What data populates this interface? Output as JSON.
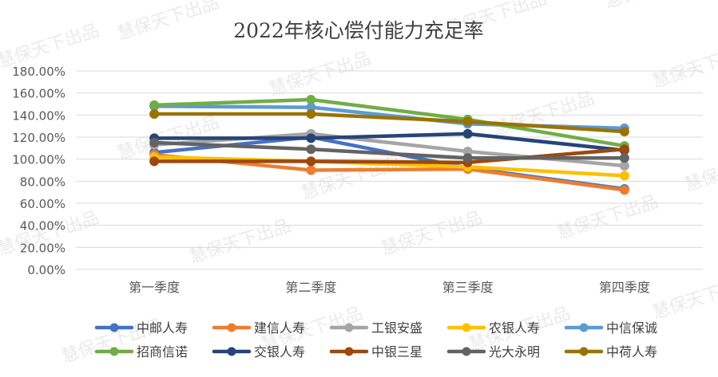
{
  "chart_data": {
    "type": "line",
    "title": "2022年核心偿付能力充足率",
    "categories": [
      "第一季度",
      "第二季度",
      "第三季度",
      "第四季度"
    ],
    "yticks": [
      "0.00%",
      "20.00%",
      "40.00%",
      "60.00%",
      "80.00%",
      "100.00%",
      "120.00%",
      "140.00%",
      "160.00%",
      "180.00%"
    ],
    "ylim": [
      0,
      180
    ],
    "grid": true,
    "legend_position": "bottom",
    "series": [
      {
        "name": "中邮人寿",
        "color": "#4472C4",
        "values": [
          106,
          120,
          92,
          73
        ]
      },
      {
        "name": "建信人寿",
        "color": "#ED7D31",
        "values": [
          104,
          90,
          91,
          72
        ]
      },
      {
        "name": "工银安盛",
        "color": "#A5A5A5",
        "values": [
          113,
          123,
          107,
          94
        ]
      },
      {
        "name": "农银人寿",
        "color": "#FFC000",
        "values": [
          102,
          98,
          93,
          85
        ]
      },
      {
        "name": "中信保诚",
        "color": "#5B9BD5",
        "values": [
          148,
          147,
          132,
          128
        ]
      },
      {
        "name": "招商信诺",
        "color": "#70AD47",
        "values": [
          149,
          154,
          136,
          112
        ]
      },
      {
        "name": "交银人寿",
        "color": "#264478",
        "values": [
          119,
          119,
          123,
          108
        ]
      },
      {
        "name": "中银三星",
        "color": "#9E480E",
        "values": [
          98,
          98,
          97,
          109
        ]
      },
      {
        "name": "光大永明",
        "color": "#636363",
        "values": [
          115,
          109,
          101,
          101
        ]
      },
      {
        "name": "中荷人寿",
        "color": "#997300",
        "values": [
          141,
          141,
          134,
          125
        ]
      }
    ]
  },
  "watermark": "慧保天下出品"
}
